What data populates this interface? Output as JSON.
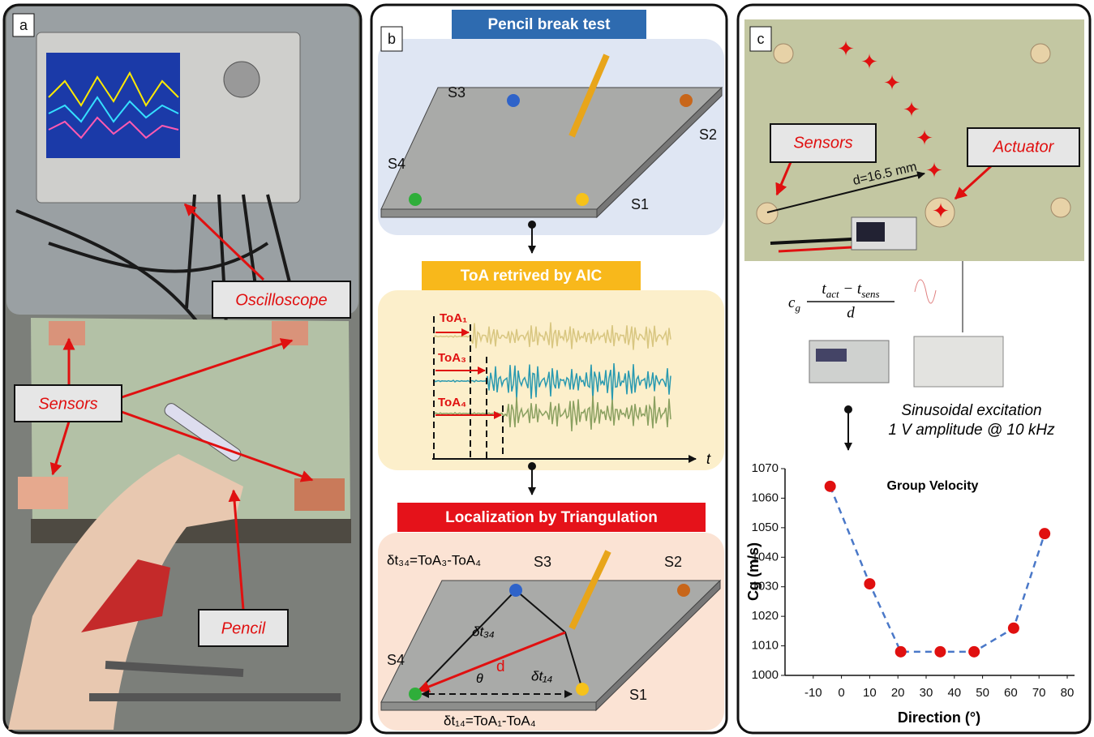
{
  "panels": {
    "a": {
      "label": "a",
      "oscilloscope": "Oscilloscope",
      "sensors": "Sensors",
      "pencil": "Pencil"
    },
    "b": {
      "label": "b",
      "pencil_break_test": "Pencil break test",
      "s3": "S3",
      "s2": "S2",
      "s4": "S4",
      "s1": "S1",
      "toa_title": "ToA retrived by AIC",
      "toa_1": "ToA₁",
      "toa_3": "ToA₃",
      "toa_4": "ToA₄",
      "t_axis": "t",
      "localization_title": "Localization by Triangulation",
      "dt34_eq": "δt₃₄=ToA₃-ToA₄",
      "dt14_eq": "δt₁₄=ToA₁-ToA₄",
      "s3b": "S3",
      "s2b": "S2",
      "s4b": "S4",
      "s1b": "S1",
      "dt34": "δt₃₄",
      "dt14": "δt₁₄",
      "theta": "θ",
      "d": "d"
    },
    "c": {
      "label": "c",
      "sensors": "Sensors",
      "actuator": "Actuator",
      "distance": "d=16.5 mm",
      "formula": {
        "lhs": "c",
        "lhs_sub": "g",
        "t1": "t",
        "t1_sub": "act",
        "minus": " − ",
        "t2": "t",
        "t2_sub": "sens",
        "den": "d"
      },
      "excitation_1": "Sinusoidal excitation",
      "excitation_2": "1 V amplitude @ 10 kHz"
    }
  },
  "chart_data": {
    "type": "scatter",
    "title": "Group Velocity",
    "x_label": "Direction (°)",
    "y_label": "Cg (m/s)",
    "x": [
      -4,
      10,
      21,
      35,
      47,
      61,
      72
    ],
    "values": [
      1064,
      1031,
      1008,
      1008,
      1008,
      1016,
      1048
    ],
    "color": "#e01010",
    "line_color": "#4a78c8",
    "xlim": [
      -20,
      80
    ],
    "xticks": [
      -10,
      0,
      10,
      20,
      30,
      40,
      50,
      60,
      70,
      80
    ],
    "ylim": [
      1000,
      1070
    ],
    "yticks": [
      1000,
      1010,
      1020,
      1030,
      1040,
      1050,
      1060,
      1070
    ]
  }
}
